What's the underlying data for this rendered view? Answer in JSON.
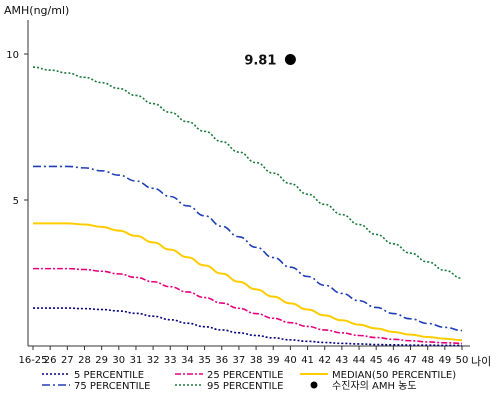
{
  "chart_data": {
    "type": "line",
    "ylabel": "AMH(ng/ml)",
    "xlabel": "나이",
    "categories": [
      "16-25",
      "26",
      "27",
      "28",
      "29",
      "30",
      "31",
      "32",
      "33",
      "34",
      "35",
      "36",
      "37",
      "38",
      "39",
      "40",
      "41",
      "42",
      "43",
      "44",
      "45",
      "46",
      "47",
      "48",
      "49",
      "50"
    ],
    "yticks": [
      5,
      10
    ],
    "ylim": [
      0,
      10.8
    ],
    "grid": false,
    "series": [
      {
        "name": "5 PERCENTILE",
        "color": "#000080",
        "dash": "2,2",
        "values": [
          1.3,
          1.3,
          1.3,
          1.28,
          1.25,
          1.2,
          1.12,
          1.02,
          0.9,
          0.78,
          0.66,
          0.55,
          0.45,
          0.36,
          0.28,
          0.21,
          0.16,
          0.12,
          0.09,
          0.07,
          0.05,
          0.04,
          0.03,
          0.03,
          0.02,
          0.02
        ]
      },
      {
        "name": "25 PERCENTILE",
        "color": "#e6007e",
        "dash": "6,2,2,2",
        "values": [
          2.65,
          2.65,
          2.65,
          2.62,
          2.56,
          2.47,
          2.35,
          2.2,
          2.03,
          1.85,
          1.66,
          1.47,
          1.29,
          1.11,
          0.95,
          0.8,
          0.67,
          0.55,
          0.45,
          0.36,
          0.29,
          0.23,
          0.18,
          0.14,
          0.11,
          0.09
        ]
      },
      {
        "name": "MEDIAN(50 PERCENTILE)",
        "color": "#ffcc00",
        "dash": "",
        "values": [
          4.2,
          4.2,
          4.2,
          4.16,
          4.08,
          3.95,
          3.77,
          3.55,
          3.3,
          3.04,
          2.76,
          2.48,
          2.2,
          1.94,
          1.69,
          1.46,
          1.25,
          1.05,
          0.88,
          0.73,
          0.6,
          0.48,
          0.39,
          0.31,
          0.25,
          0.2
        ]
      },
      {
        "name": "75 PERCENTILE",
        "color": "#1f3fb6",
        "dash": "8,3,2,3",
        "values": [
          6.15,
          6.15,
          6.15,
          6.1,
          6.0,
          5.85,
          5.65,
          5.4,
          5.12,
          4.8,
          4.46,
          4.1,
          3.74,
          3.38,
          3.03,
          2.7,
          2.38,
          2.08,
          1.8,
          1.55,
          1.32,
          1.11,
          0.93,
          0.77,
          0.64,
          0.53
        ]
      },
      {
        "name": "95 PERCENTILE",
        "color": "#1a7a3a",
        "dash": "2,2",
        "values": [
          9.55,
          9.45,
          9.35,
          9.2,
          9.02,
          8.82,
          8.58,
          8.3,
          8.0,
          7.68,
          7.35,
          7.0,
          6.64,
          6.28,
          5.92,
          5.56,
          5.2,
          4.85,
          4.5,
          4.16,
          3.82,
          3.5,
          3.18,
          2.88,
          2.59,
          2.32
        ]
      }
    ],
    "marker": {
      "label": "9.81",
      "category": "40",
      "value": 9.81,
      "legend": "수진자의 AMH 농도"
    }
  }
}
